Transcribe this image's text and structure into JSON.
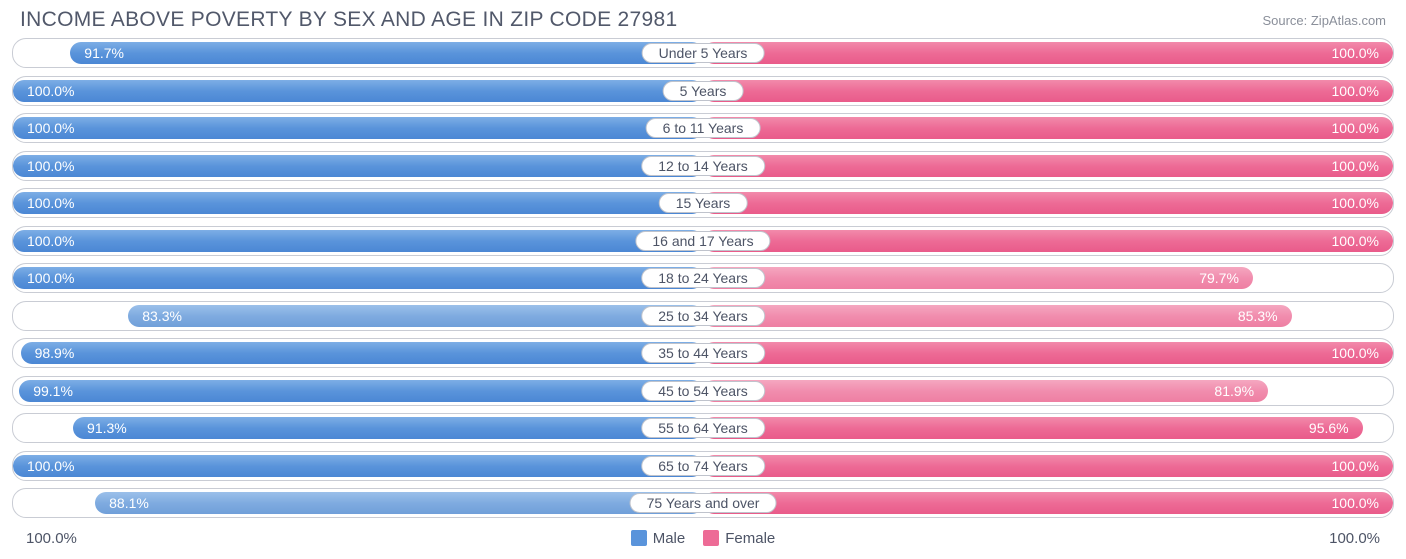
{
  "title": "INCOME ABOVE POVERTY BY SEX AND AGE IN ZIP CODE 27981",
  "source": "Source: ZipAtlas.com",
  "axis_left": "100.0%",
  "axis_right": "100.0%",
  "legend": {
    "male": "Male",
    "female": "Female"
  },
  "colors": {
    "male_bar": "#5a94db",
    "female_bar": "#ed6b96",
    "border": "#c9ccd4",
    "text": "#51586a",
    "bg": "#ffffff"
  },
  "chart": {
    "type": "diverging-bar",
    "max_percent": 100.0,
    "rows": [
      {
        "age": "Under 5 Years",
        "male": 91.7,
        "female": 100.0,
        "male_light": false,
        "female_light": false
      },
      {
        "age": "5 Years",
        "male": 100.0,
        "female": 100.0,
        "male_light": false,
        "female_light": false
      },
      {
        "age": "6 to 11 Years",
        "male": 100.0,
        "female": 100.0,
        "male_light": false,
        "female_light": false
      },
      {
        "age": "12 to 14 Years",
        "male": 100.0,
        "female": 100.0,
        "male_light": false,
        "female_light": false
      },
      {
        "age": "15 Years",
        "male": 100.0,
        "female": 100.0,
        "male_light": false,
        "female_light": false
      },
      {
        "age": "16 and 17 Years",
        "male": 100.0,
        "female": 100.0,
        "male_light": false,
        "female_light": false
      },
      {
        "age": "18 to 24 Years",
        "male": 100.0,
        "female": 79.7,
        "male_light": false,
        "female_light": true
      },
      {
        "age": "25 to 34 Years",
        "male": 83.3,
        "female": 85.3,
        "male_light": true,
        "female_light": true
      },
      {
        "age": "35 to 44 Years",
        "male": 98.9,
        "female": 100.0,
        "male_light": false,
        "female_light": false
      },
      {
        "age": "45 to 54 Years",
        "male": 99.1,
        "female": 81.9,
        "male_light": false,
        "female_light": true
      },
      {
        "age": "55 to 64 Years",
        "male": 91.3,
        "female": 95.6,
        "male_light": false,
        "female_light": false
      },
      {
        "age": "65 to 74 Years",
        "male": 100.0,
        "female": 100.0,
        "male_light": false,
        "female_light": false
      },
      {
        "age": "75 Years and over",
        "male": 88.1,
        "female": 100.0,
        "male_light": true,
        "female_light": false
      }
    ]
  }
}
